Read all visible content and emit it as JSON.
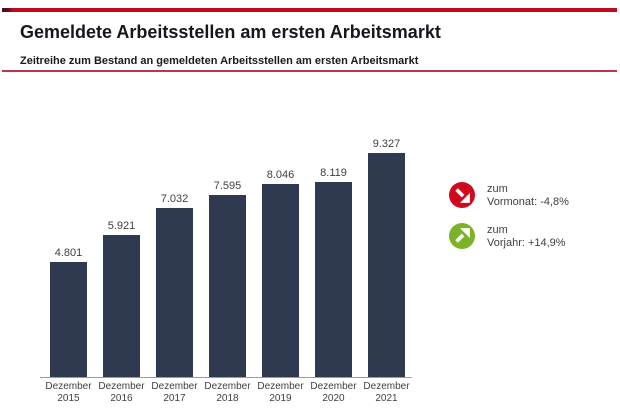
{
  "header": {
    "title": "Gemeldete Arbeitsstellen am ersten Arbeitsmarkt",
    "subtitle": "Zeitreihe zum Bestand an gemeldeten Arbeitsstellen am ersten Arbeitsmarkt"
  },
  "colors": {
    "accent_red": "#c10a1e",
    "bar": "#2f3a50",
    "axis": "#9b9b9b",
    "indicator_down": "#cf0a1e",
    "indicator_up": "#7ab32a"
  },
  "chart_data": {
    "type": "bar",
    "title": "Gemeldete Arbeitsstellen am ersten Arbeitsmarkt",
    "subtitle": "Zeitreihe zum Bestand an gemeldeten Arbeitsstellen am ersten Arbeitsmarkt",
    "categories": [
      "Dezember 2015",
      "Dezember 2016",
      "Dezember 2017",
      "Dezember 2018",
      "Dezember 2019",
      "Dezember 2020",
      "Dezember 2021"
    ],
    "values": [
      4801,
      5921,
      7032,
      7595,
      8046,
      8119,
      9327
    ],
    "value_labels": [
      "4.801",
      "5.921",
      "7.032",
      "7.595",
      "8.046",
      "8.119",
      "9.327"
    ],
    "xlabel": "",
    "ylabel": "",
    "ylim": [
      0,
      9327
    ],
    "grid": false,
    "legend_position": "none",
    "bar_color": "#2f3a50"
  },
  "indicators": [
    {
      "icon": "arrow-down-right-icon",
      "color": "#cf0a1e",
      "label_line1": "zum",
      "label_line2": "Vormonat: -4,8%"
    },
    {
      "icon": "arrow-up-right-icon",
      "color": "#7ab32a",
      "label_line1": "zum",
      "label_line2": "Vorjahr: +14,9%"
    }
  ]
}
